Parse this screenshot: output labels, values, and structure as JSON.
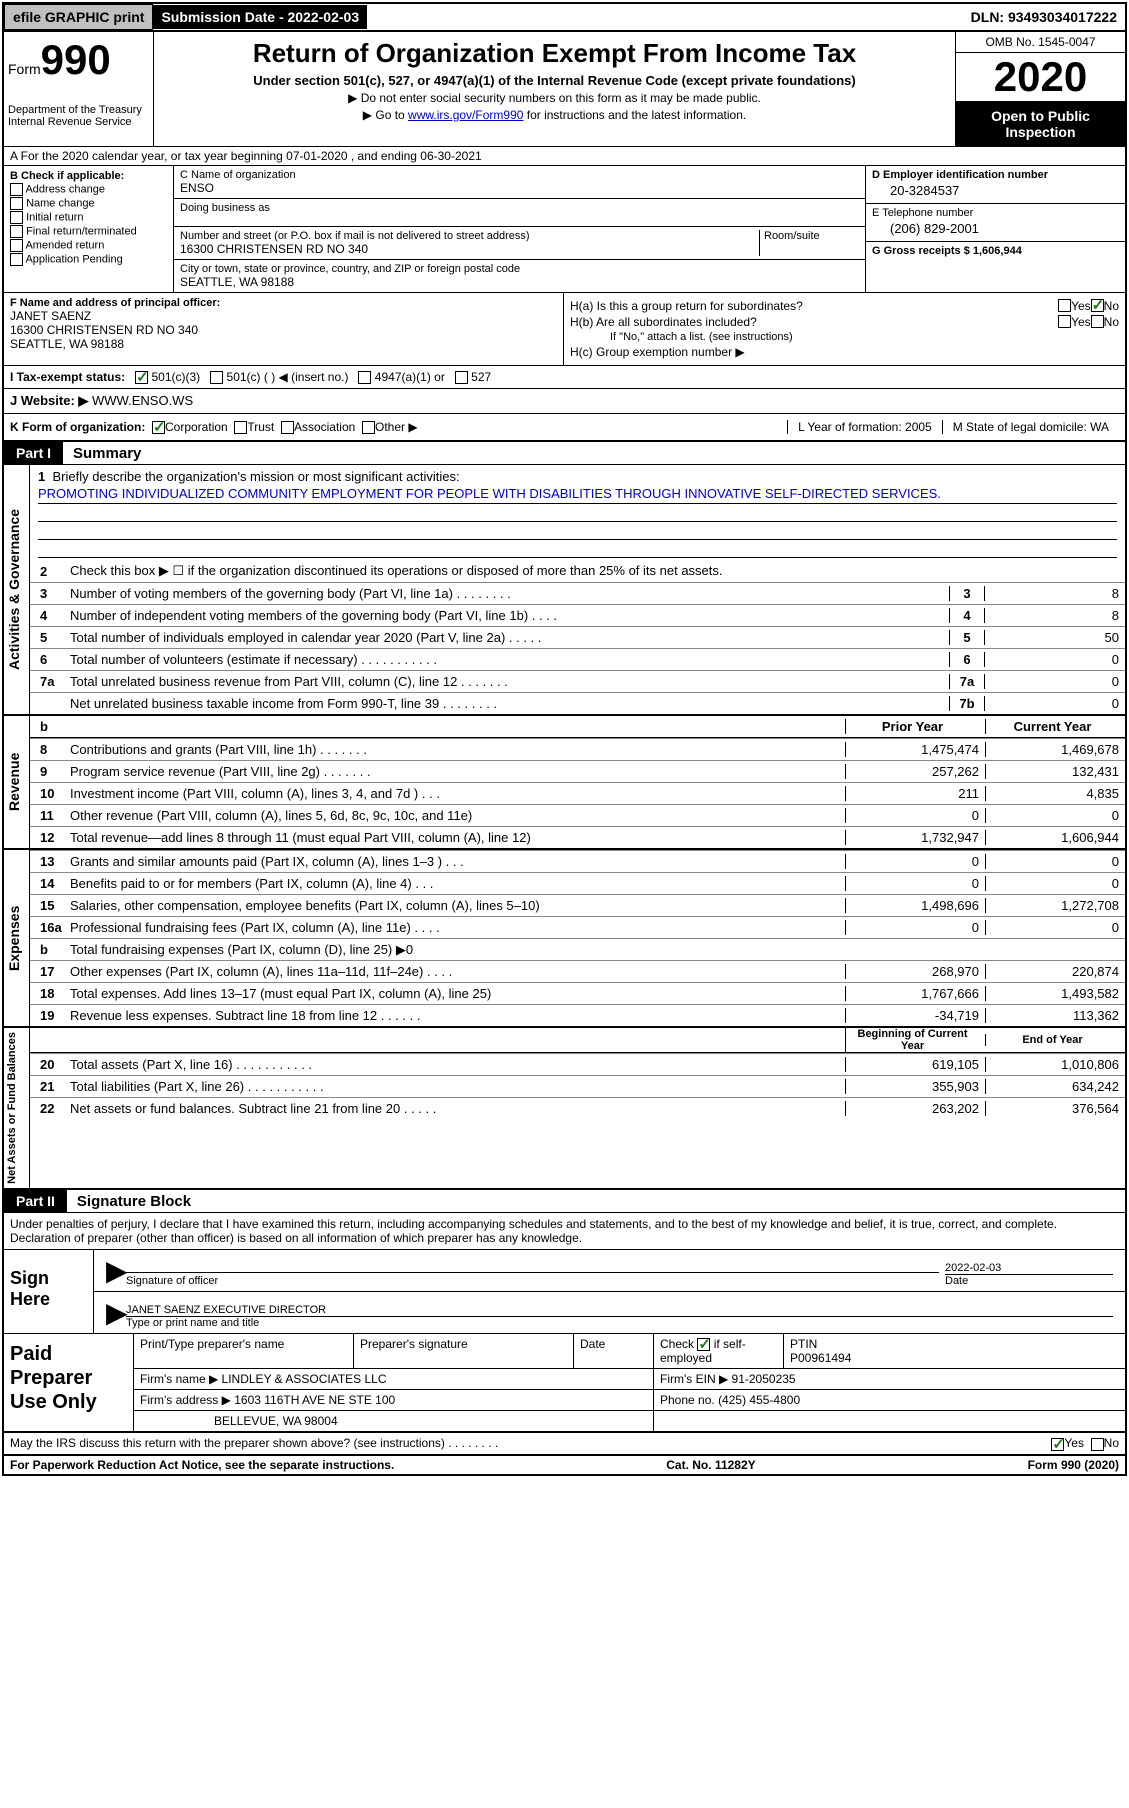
{
  "topbar": {
    "efile": "efile GRAPHIC print",
    "subdate_label": "Submission Date - 2022-02-03",
    "dln": "DLN: 93493034017222"
  },
  "header": {
    "form_label": "Form",
    "form_number": "990",
    "dept": "Department of the Treasury\nInternal Revenue Service",
    "title": "Return of Organization Exempt From Income Tax",
    "subtitle": "Under section 501(c), 527, or 4947(a)(1) of the Internal Revenue Code (except private foundations)",
    "note1": "▶ Do not enter social security numbers on this form as it may be made public.",
    "note2_pre": "▶ Go to ",
    "note2_link": "www.irs.gov/Form990",
    "note2_post": " for instructions and the latest information.",
    "omb": "OMB No. 1545-0047",
    "year": "2020",
    "inspection": "Open to Public Inspection"
  },
  "row_a": "A For the 2020 calendar year, or tax year beginning 07-01-2020    , and ending 06-30-2021",
  "box_b": {
    "label": "B Check if applicable:",
    "items": [
      "Address change",
      "Name change",
      "Initial return",
      "Final return/terminated",
      "Amended return",
      "Application Pending"
    ]
  },
  "box_c": {
    "name_label": "C Name of organization",
    "name": "ENSO",
    "dba_label": "Doing business as",
    "dba": "",
    "street_label": "Number and street (or P.O. box if mail is not delivered to street address)",
    "street": "16300 CHRISTENSEN RD NO 340",
    "room_label": "Room/suite",
    "city_label": "City or town, state or province, country, and ZIP or foreign postal code",
    "city": "SEATTLE, WA  98188"
  },
  "box_d": {
    "ein_label": "D Employer identification number",
    "ein": "20-3284537",
    "phone_label": "E Telephone number",
    "phone": "(206) 829-2001",
    "gross_label": "G Gross receipts $ 1,606,944"
  },
  "box_f": {
    "label": "F Name and address of principal officer:",
    "name": "JANET SAENZ",
    "street": "16300 CHRISTENSEN RD NO 340",
    "city": "SEATTLE, WA  98188"
  },
  "box_h": {
    "ha_label": "H(a)  Is this a group return for subordinates?",
    "hb_label": "H(b)  Are all subordinates included?",
    "hb_note": "If \"No,\" attach a list. (see instructions)",
    "hc_label": "H(c)  Group exemption number ▶"
  },
  "row_i": {
    "label": "I   Tax-exempt status:",
    "opt1": "501(c)(3)",
    "opt2": "501(c) (   ) ◀ (insert no.)",
    "opt3": "4947(a)(1) or",
    "opt4": "527"
  },
  "row_j": {
    "label": "J   Website: ▶",
    "value": "WWW.ENSO.WS"
  },
  "row_k": {
    "label": "K Form of organization:",
    "opts": [
      "Corporation",
      "Trust",
      "Association",
      "Other ▶"
    ],
    "year_label": "L Year of formation: 2005",
    "state_label": "M State of legal domicile: WA"
  },
  "part1": {
    "tag": "Part I",
    "title": "Summary"
  },
  "mission": {
    "num": "1",
    "label": "Briefly describe the organization's mission or most significant activities:",
    "text": "PROMOTING INDIVIDUALIZED COMMUNITY EMPLOYMENT FOR PEOPLE WITH DISABILITIES THROUGH INNOVATIVE SELF-DIRECTED SERVICES."
  },
  "line2": "Check this box ▶ ☐  if the organization discontinued its operations or disposed of more than 25% of its net assets.",
  "governance_lines": [
    {
      "n": "3",
      "d": "Number of voting members of the governing body (Part VI, line 1a)   .    .    .    .    .    .    .    .",
      "k": "3",
      "v": "8"
    },
    {
      "n": "4",
      "d": "Number of independent voting members of the governing body (Part VI, line 1b)    .    .    .    .",
      "k": "4",
      "v": "8"
    },
    {
      "n": "5",
      "d": "Total number of individuals employed in calendar year 2020 (Part V, line 2a)    .    .    .    .    .",
      "k": "5",
      "v": "50"
    },
    {
      "n": "6",
      "d": "Total number of volunteers (estimate if necessary)    .    .    .    .    .    .    .    .    .    .    .",
      "k": "6",
      "v": "0"
    },
    {
      "n": "7a",
      "d": "Total unrelated business revenue from Part VIII, column (C), line 12   .    .    .    .    .    .    .",
      "k": "7a",
      "v": "0"
    },
    {
      "n": "",
      "d": "Net unrelated business taxable income from Form 990-T, line 39    .    .    .    .    .    .    .    .",
      "k": "7b",
      "v": "0"
    }
  ],
  "fin_header": {
    "prior": "Prior Year",
    "current": "Current Year"
  },
  "revenue_lines": [
    {
      "n": "8",
      "d": "Contributions and grants (Part VIII, line 1h)    .    .    .    .    .    .    .",
      "p": "1,475,474",
      "c": "1,469,678"
    },
    {
      "n": "9",
      "d": "Program service revenue (Part VIII, line 2g)    .    .    .    .    .    .    .",
      "p": "257,262",
      "c": "132,431"
    },
    {
      "n": "10",
      "d": "Investment income (Part VIII, column (A), lines 3, 4, and 7d )    .    .    .",
      "p": "211",
      "c": "4,835"
    },
    {
      "n": "11",
      "d": "Other revenue (Part VIII, column (A), lines 5, 6d, 8c, 9c, 10c, and 11e)",
      "p": "0",
      "c": "0"
    },
    {
      "n": "12",
      "d": "Total revenue—add lines 8 through 11 (must equal Part VIII, column (A), line 12)",
      "p": "1,732,947",
      "c": "1,606,944"
    }
  ],
  "expense_lines": [
    {
      "n": "13",
      "d": "Grants and similar amounts paid (Part IX, column (A), lines 1–3 )    .    .    .",
      "p": "0",
      "c": "0"
    },
    {
      "n": "14",
      "d": "Benefits paid to or for members (Part IX, column (A), line 4)    .    .    .",
      "p": "0",
      "c": "0"
    },
    {
      "n": "15",
      "d": "Salaries, other compensation, employee benefits (Part IX, column (A), lines 5–10)",
      "p": "1,498,696",
      "c": "1,272,708"
    },
    {
      "n": "16a",
      "d": "Professional fundraising fees (Part IX, column (A), line 11e)    .    .    .    .",
      "p": "0",
      "c": "0"
    },
    {
      "n": "b",
      "d": "Total fundraising expenses (Part IX, column (D), line 25) ▶0",
      "p": "",
      "c": "",
      "gray": true
    },
    {
      "n": "17",
      "d": "Other expenses (Part IX, column (A), lines 11a–11d, 11f–24e)    .    .    .    .",
      "p": "268,970",
      "c": "220,874"
    },
    {
      "n": "18",
      "d": "Total expenses. Add lines 13–17 (must equal Part IX, column (A), line 25)",
      "p": "1,767,666",
      "c": "1,493,582"
    },
    {
      "n": "19",
      "d": "Revenue less expenses. Subtract line 18 from line 12    .    .    .    .    .    .",
      "p": "-34,719",
      "c": "113,362"
    }
  ],
  "net_header": {
    "beg": "Beginning of Current Year",
    "end": "End of Year"
  },
  "net_lines": [
    {
      "n": "20",
      "d": "Total assets (Part X, line 16)    .    .    .    .    .    .    .    .    .    .    .",
      "p": "619,105",
      "c": "1,010,806"
    },
    {
      "n": "21",
      "d": "Total liabilities (Part X, line 26)    .    .    .    .    .    .    .    .    .    .    .",
      "p": "355,903",
      "c": "634,242"
    },
    {
      "n": "22",
      "d": "Net assets or fund balances. Subtract line 21 from line 20   .    .    .    .    .",
      "p": "263,202",
      "c": "376,564"
    }
  ],
  "part2": {
    "tag": "Part II",
    "title": "Signature Block"
  },
  "penalties": "Under penalties of perjury, I declare that I have examined this return, including accompanying schedules and statements, and to the best of my knowledge and belief, it is true, correct, and complete. Declaration of preparer (other than officer) is based on all information of which preparer has any knowledge.",
  "sign": {
    "here": "Sign Here",
    "sig_label": "Signature of officer",
    "date_label": "Date",
    "date": "2022-02-03",
    "name": "JANET SAENZ  EXECUTIVE DIRECTOR",
    "name_label": "Type or print name and title"
  },
  "prep": {
    "label": "Paid Preparer Use Only",
    "h1": "Print/Type preparer's name",
    "h2": "Preparer's signature",
    "h3": "Date",
    "h4a": "Check",
    "h4b": "if self-employed",
    "h5": "PTIN",
    "ptin": "P00961494",
    "firm_label": "Firm's name    ▶",
    "firm": "LINDLEY & ASSOCIATES LLC",
    "ein_label": "Firm's EIN ▶",
    "ein": "91-2050235",
    "addr_label": "Firm's address ▶",
    "addr1": "1603 116TH AVE NE STE 100",
    "addr2": "BELLEVUE, WA  98004",
    "phone_label": "Phone no.",
    "phone": "(425) 455-4800"
  },
  "discuss": "May the IRS discuss this return with the preparer shown above? (see instructions)    .    .    .    .    .    .    .    .",
  "footer": {
    "left": "For Paperwork Reduction Act Notice, see the separate instructions.",
    "mid": "Cat. No. 11282Y",
    "right": "Form 990 (2020)"
  },
  "side_labels": {
    "gov": "Activities & Governance",
    "rev": "Revenue",
    "exp": "Expenses",
    "net": "Net Assets or Fund Balances"
  }
}
